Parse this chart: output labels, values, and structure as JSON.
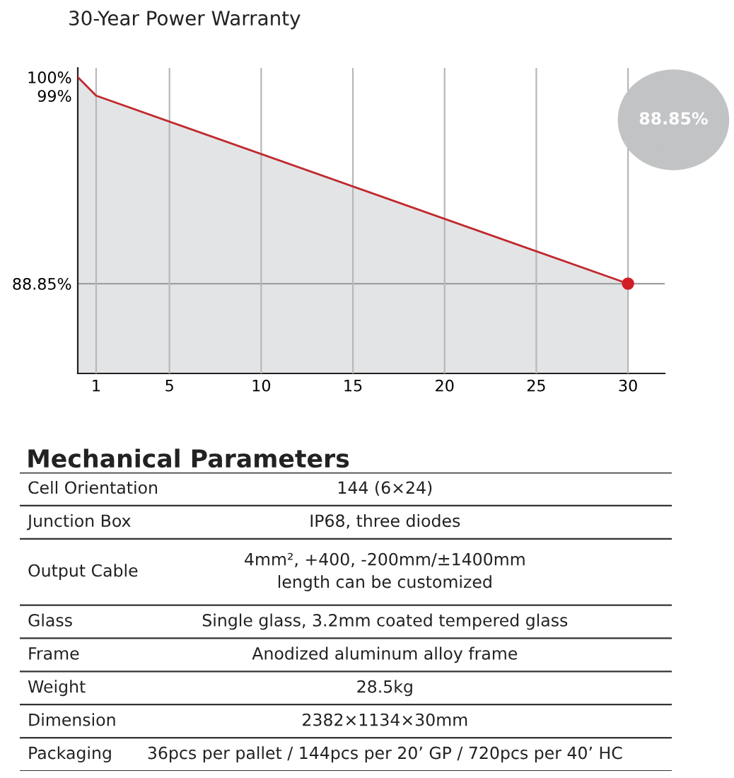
{
  "chart_data": [
    {
      "type": "area",
      "title": "30-Year Power Warranty",
      "series": [
        {
          "type": "area",
          "color": "#c0282d",
          "x": [
            0,
            1,
            30
          ],
          "values": [
            100,
            99,
            88.85
          ]
        },
        {
          "type": "scatter",
          "color": "#d11f26",
          "x": [
            30
          ],
          "values": [
            88.85
          ]
        }
      ],
      "xlim": [
        0,
        32
      ],
      "xticks": [
        1,
        5,
        10,
        15,
        20,
        25,
        30
      ],
      "ylim": [
        84,
        100.5
      ],
      "yticks": [
        {
          "value": 100,
          "label": "100%"
        },
        {
          "value": 99,
          "label": "99%"
        },
        {
          "value": 88.85,
          "label": "88.85%"
        }
      ],
      "grid": "x",
      "ref_lines": [
        {
          "axis": "y",
          "value": 88.85,
          "color": "#a0a0a0"
        }
      ],
      "annotations": [
        "88.85%"
      ]
    },
    {
      "type": "other",
      "title": "Mechanical Parameters",
      "categories": [
        "Cell Orientation",
        "Junction Box",
        "Output Cable",
        "Glass",
        "Frame",
        "Weight",
        "Dimension",
        "Packaging"
      ],
      "annotations": [
        "144 (6×24)",
        "IP68, three diodes",
        "4mm², +400, -200mm/±1400mm\nlength can be customized",
        "Single glass, 3.2mm coated tempered glass",
        "Anodized aluminum alloy frame",
        "28.5kg",
        "2382×1134×30mm",
        "36pcs per pallet / 144pcs per 20’ GP / 720pcs per 40’ HC"
      ]
    }
  ]
}
